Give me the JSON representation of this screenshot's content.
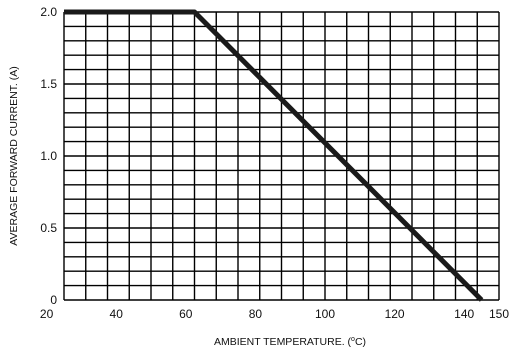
{
  "chart_data": {
    "type": "line",
    "title": "",
    "xlabel_main": "AMBIENT TEMPERATURE. (",
    "xlabel_unit_sup": "o",
    "xlabel_unit_tail": "C)",
    "ylabel": "AVERAGE FORWARD CURRENT. (A)",
    "xlim": [
      25,
      150
    ],
    "ylim": [
      0,
      2.0
    ],
    "x_ticks": [
      {
        "value": 20,
        "label": "20"
      },
      {
        "value": 40,
        "label": "40"
      },
      {
        "value": 60,
        "label": "60"
      },
      {
        "value": 80,
        "label": "80"
      },
      {
        "value": 100,
        "label": "100"
      },
      {
        "value": 120,
        "label": "120"
      },
      {
        "value": 140,
        "label": "140"
      },
      {
        "value": 150,
        "label": "150"
      }
    ],
    "y_ticks": [
      {
        "value": 0,
        "label": "0"
      },
      {
        "value": 0.5,
        "label": "0.5"
      },
      {
        "value": 1.0,
        "label": "1.0"
      },
      {
        "value": 1.5,
        "label": "1.5"
      },
      {
        "value": 2.0,
        "label": "2.0"
      }
    ],
    "grid": true,
    "grid_x_step": 6.25,
    "grid_y_step": 0.1,
    "series": [
      {
        "color": "#1a1a1a",
        "x": [
          25,
          62.5,
          145
        ],
        "y": [
          2.0,
          2.0,
          0
        ]
      }
    ]
  }
}
